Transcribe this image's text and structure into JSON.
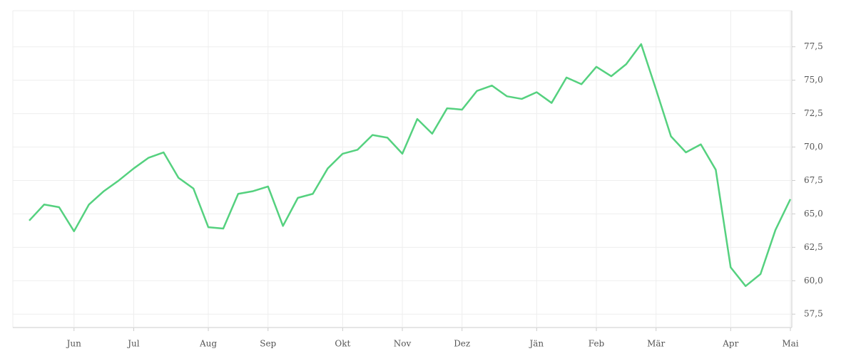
{
  "chart_data": {
    "type": "line",
    "categories": [
      null,
      null,
      null,
      "Jun",
      null,
      null,
      null,
      "Jul",
      null,
      null,
      null,
      null,
      "Aug",
      null,
      null,
      null,
      "Sep",
      null,
      null,
      null,
      null,
      "Okt",
      null,
      null,
      null,
      "Nov",
      null,
      null,
      null,
      "Dez",
      null,
      null,
      null,
      null,
      "Jän",
      null,
      null,
      null,
      "Feb",
      null,
      null,
      null,
      "Mär",
      null,
      null,
      null,
      null,
      "Apr",
      null,
      null,
      null,
      "Mai"
    ],
    "series": [
      {
        "color": "#55d17f",
        "values": [
          64.5,
          65.7,
          65.5,
          63.7,
          65.7,
          66.7,
          67.5,
          68.4,
          69.2,
          69.6,
          67.7,
          66.9,
          64.0,
          63.9,
          66.5,
          66.7,
          67.05,
          64.1,
          66.2,
          66.5,
          68.4,
          69.5,
          69.8,
          70.9,
          70.7,
          69.5,
          72.1,
          71.0,
          72.9,
          72.8,
          74.2,
          74.6,
          73.8,
          73.6,
          74.1,
          73.3,
          75.2,
          74.7,
          76.0,
          75.3,
          76.2,
          77.7,
          74.3,
          70.8,
          69.6,
          70.2,
          68.3,
          61.0,
          59.6,
          60.5,
          63.8,
          66.1
        ]
      }
    ],
    "ylim": [
      56.5,
      80.2
    ],
    "yticks": [
      {
        "value": 57.5,
        "label": "57,5"
      },
      {
        "value": 60,
        "label": "60,0"
      },
      {
        "value": 62.5,
        "label": "62,5"
      },
      {
        "value": 65,
        "label": "65,0"
      },
      {
        "value": 67.5,
        "label": "67,5"
      },
      {
        "value": 70,
        "label": "70,0"
      },
      {
        "value": 72.5,
        "label": "72,5"
      },
      {
        "value": 75,
        "label": "75,0"
      },
      {
        "value": 77.5,
        "label": "77,5"
      }
    ],
    "grid": true
  }
}
